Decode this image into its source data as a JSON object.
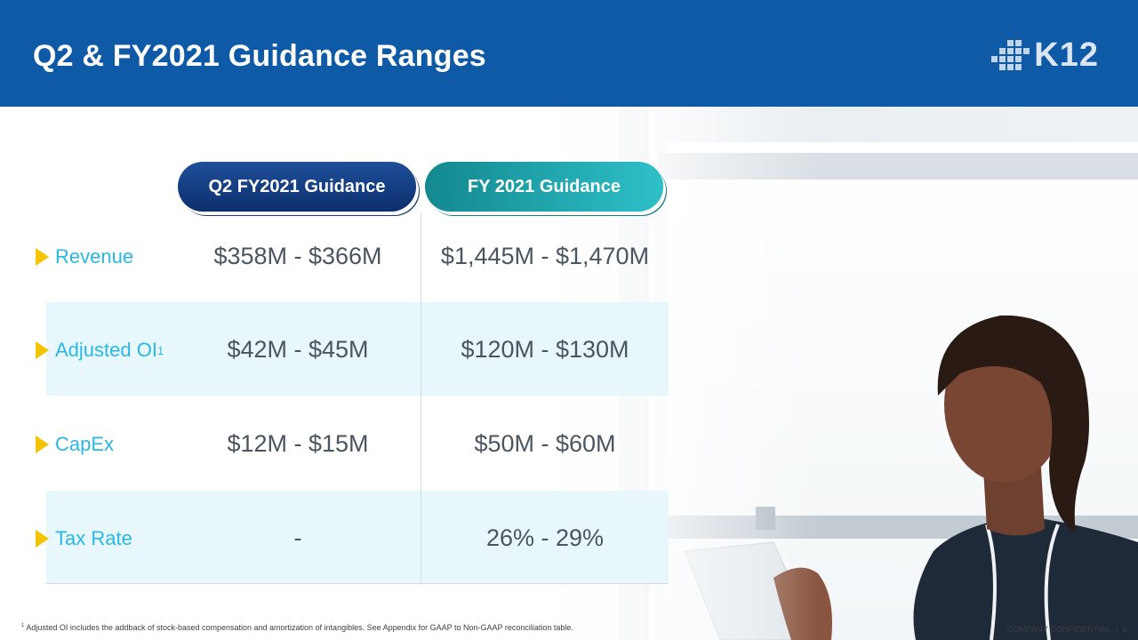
{
  "header": {
    "title": "Q2 & FY2021 Guidance Ranges",
    "logo_text": "K12",
    "logo_icon": "pixel-grid-logo-icon"
  },
  "columns": {
    "q2": "Q2 FY2021 Guidance",
    "fy": "FY 2021 Guidance"
  },
  "rows": [
    {
      "label": "Revenue",
      "superscript": "",
      "q2": "$358M - $366M",
      "fy": "$1,445M - $1,470M"
    },
    {
      "label": "Adjusted OI",
      "superscript": "1",
      "q2": "$42M - $45M",
      "fy": "$120M - $130M"
    },
    {
      "label": "CapEx",
      "superscript": "",
      "q2": "$12M - $15M",
      "fy": "$50M - $60M"
    },
    {
      "label": "Tax Rate",
      "superscript": "",
      "q2": "-",
      "fy": "26% - 29%"
    }
  ],
  "footer": {
    "footnote_marker": "1",
    "footnote": "Adjusted OI includes the addback of stock-based compensation and amortization of intangibles. See Appendix for GAAP to Non-GAAP reconciliation table.",
    "confidential": "COMPANY CONFIDENTIAL",
    "separator": "|",
    "page_number": "6"
  },
  "colors": {
    "header_bg": "#0f5aa6",
    "metric_label": "#29b8e4",
    "bullet": "#f5c400",
    "band": "#e7f7fc"
  }
}
